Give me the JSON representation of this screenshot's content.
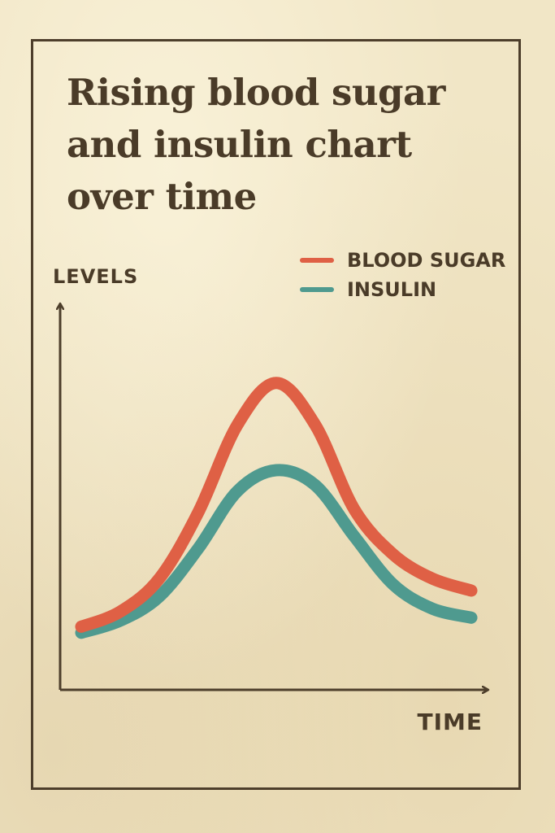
{
  "title": "Rising blood sugar and insulin chart over time",
  "chart_data": {
    "type": "line",
    "ylabel": "LEVELS",
    "xlabel": "TIME",
    "xlim": [
      0,
      10
    ],
    "ylim": [
      0,
      10
    ],
    "grid": false,
    "legend_position": "top-right",
    "series": [
      {
        "name": "BLOOD SUGAR",
        "color": "#df6045",
        "x": [
          0,
          1,
          2,
          3,
          4,
          5,
          6,
          7,
          8,
          9,
          10
        ],
        "values": [
          0.8,
          1.3,
          2.4,
          4.6,
          7.5,
          8.9,
          7.5,
          4.7,
          3.2,
          2.4,
          2.0
        ]
      },
      {
        "name": "INSULIN",
        "color": "#4f9a8f",
        "x": [
          0,
          1,
          2,
          3,
          4,
          5,
          6,
          7,
          8,
          9,
          10
        ],
        "values": [
          0.6,
          1.0,
          1.8,
          3.4,
          5.3,
          6.0,
          5.5,
          3.8,
          2.2,
          1.4,
          1.1
        ]
      }
    ]
  }
}
